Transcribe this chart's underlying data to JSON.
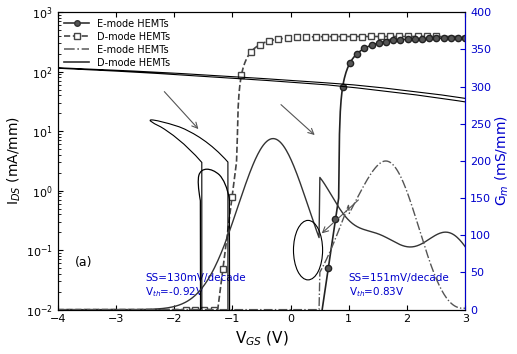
{
  "title": "",
  "xlabel": "V$_{GS}$ (V)",
  "ylabel_left": "I$_{DS}$ (mA/mm)",
  "ylabel_right": "G$_m$ (mS/mm)",
  "xlim": [
    -4,
    3
  ],
  "ylim_log": [
    0.01,
    1000
  ],
  "ylim_right": [
    0,
    400
  ],
  "background_color": "#ffffff",
  "annotation_a": "(a)",
  "ann1_text": "SS=130mV/decade\nV$_{th}$=-0.92V",
  "ann2_text": "SS=151mV/decade\nV$_{th}$=0.83V",
  "legend_entries": [
    "E-mode HEMTs",
    "D-mode HEMTs",
    "E-mode HEMTs",
    "D-mode HEMTs"
  ],
  "legend_styles": [
    "circle-solid",
    "square-dashed",
    "dash-dot",
    "solid"
  ],
  "right_axis_color": "#0000cc",
  "right_ticks": [
    0,
    50,
    100,
    150,
    200,
    250,
    300,
    350,
    400
  ]
}
